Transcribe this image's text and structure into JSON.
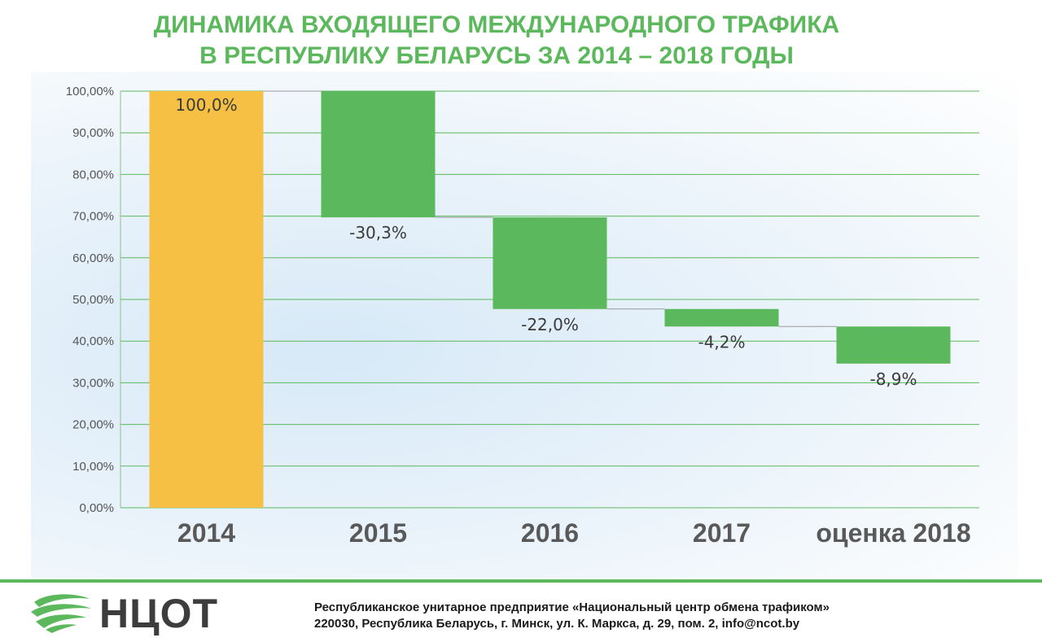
{
  "title_lines": [
    "ДИНАМИКА ВХОДЯЩЕГО МЕЖДУНАРОДНОГО ТРАФИКА",
    "В РЕСПУБЛИКУ БЕЛАРУСЬ ЗА 2014 – 2018 ГОДЫ"
  ],
  "colors": {
    "accent": "#5cb85c",
    "base_bar": "#f5c043",
    "decrease_bar": "#5cb85c",
    "connector": "#9a9a9a"
  },
  "chart_data": {
    "type": "bar",
    "subtype": "waterfall",
    "categories": [
      "2014",
      "2015",
      "2016",
      "2017",
      "оценка 2018"
    ],
    "values": [
      100.0,
      -30.3,
      -22.0,
      -4.2,
      -8.9
    ],
    "data_labels": [
      "100,0%",
      "-30,3%",
      "-22,0%",
      "-4,2%",
      "-8,9%"
    ],
    "ylim": [
      0,
      100
    ],
    "yticks": [
      0,
      10,
      20,
      30,
      40,
      50,
      60,
      70,
      80,
      90,
      100
    ],
    "ytick_labels": [
      "0,00%",
      "10,00%",
      "20,00%",
      "30,00%",
      "40,00%",
      "50,00%",
      "60,00%",
      "70,00%",
      "80,00%",
      "90,00%",
      "100,00%"
    ],
    "grid": true,
    "legend": "none"
  },
  "footer": {
    "logo_text": "НЦОТ",
    "logo_icon": "ncot-globe-logo-icon",
    "org_line1": "Республиканское унитарное предприятие «Национальный центр обмена трафиком»",
    "org_line2": "220030, Республика Беларусь, г. Минск, ул. К. Маркса, д. 29, пом. 2, info@ncot.by"
  }
}
